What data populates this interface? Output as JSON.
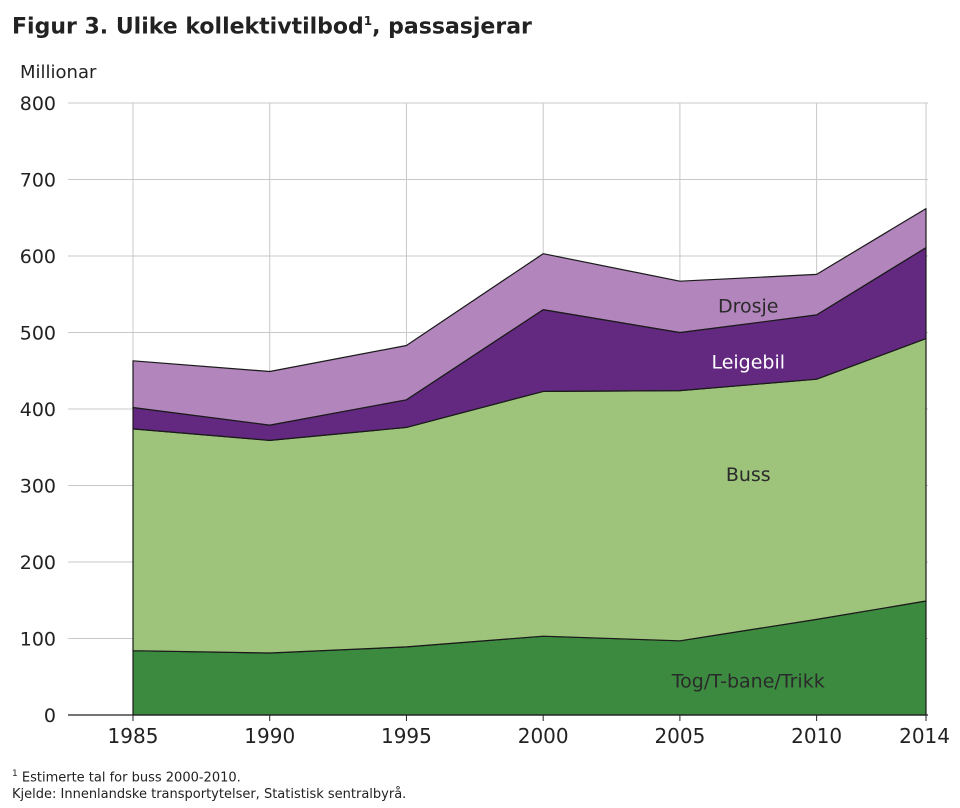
{
  "title_text": "Figur 3. Ulike kollektivtilbod",
  "title_marker": "1",
  "title_suffix": ", passasjerar",
  "unit_label": "Millionar",
  "footnote_marker": "1",
  "footnote_text": " Estimerte tal for buss 2000-2010.",
  "source_text": "Kjelde: Innenlandske transportytelser, Statistisk sentralbyrå.",
  "chart_data": {
    "type": "area",
    "stacked": true,
    "title": "Figur 3. Ulike kollektivtilbod¹, passasjerar",
    "ylabel": "Millionar",
    "xlabel": "",
    "x": [
      1985,
      1990,
      1995,
      2000,
      2005,
      2010,
      2014
    ],
    "x_ticks": [
      "1985",
      "1990",
      "1995",
      "2000",
      "2005",
      "2010",
      "2014"
    ],
    "ylim": [
      0,
      800
    ],
    "y_ticks": [
      0,
      100,
      200,
      300,
      400,
      500,
      600,
      700,
      800
    ],
    "grid": true,
    "series": [
      {
        "name": "Tog/T-bane/Trikk",
        "values": [
          84,
          81,
          89,
          103,
          97,
          125,
          149
        ],
        "color": "#3b8a3f",
        "label_x": 2007.5,
        "label_y": 45,
        "label_style": "dark"
      },
      {
        "name": "Buss",
        "values": [
          290,
          278,
          287,
          320,
          327,
          314,
          343
        ],
        "color": "#9ec37b",
        "label_x": 2007.5,
        "label_y": 315,
        "label_style": "dark"
      },
      {
        "name": "Leigebil",
        "values": [
          28,
          20,
          36,
          107,
          76,
          84,
          119
        ],
        "color": "#63287f",
        "label_x": 2007.5,
        "label_y": 462,
        "label_style": "light"
      },
      {
        "name": "Drosje",
        "values": [
          61,
          70,
          71,
          73,
          67,
          53,
          51
        ],
        "color": "#b385bd",
        "label_x": 2007.5,
        "label_y": 535,
        "label_style": "dark"
      }
    ]
  }
}
